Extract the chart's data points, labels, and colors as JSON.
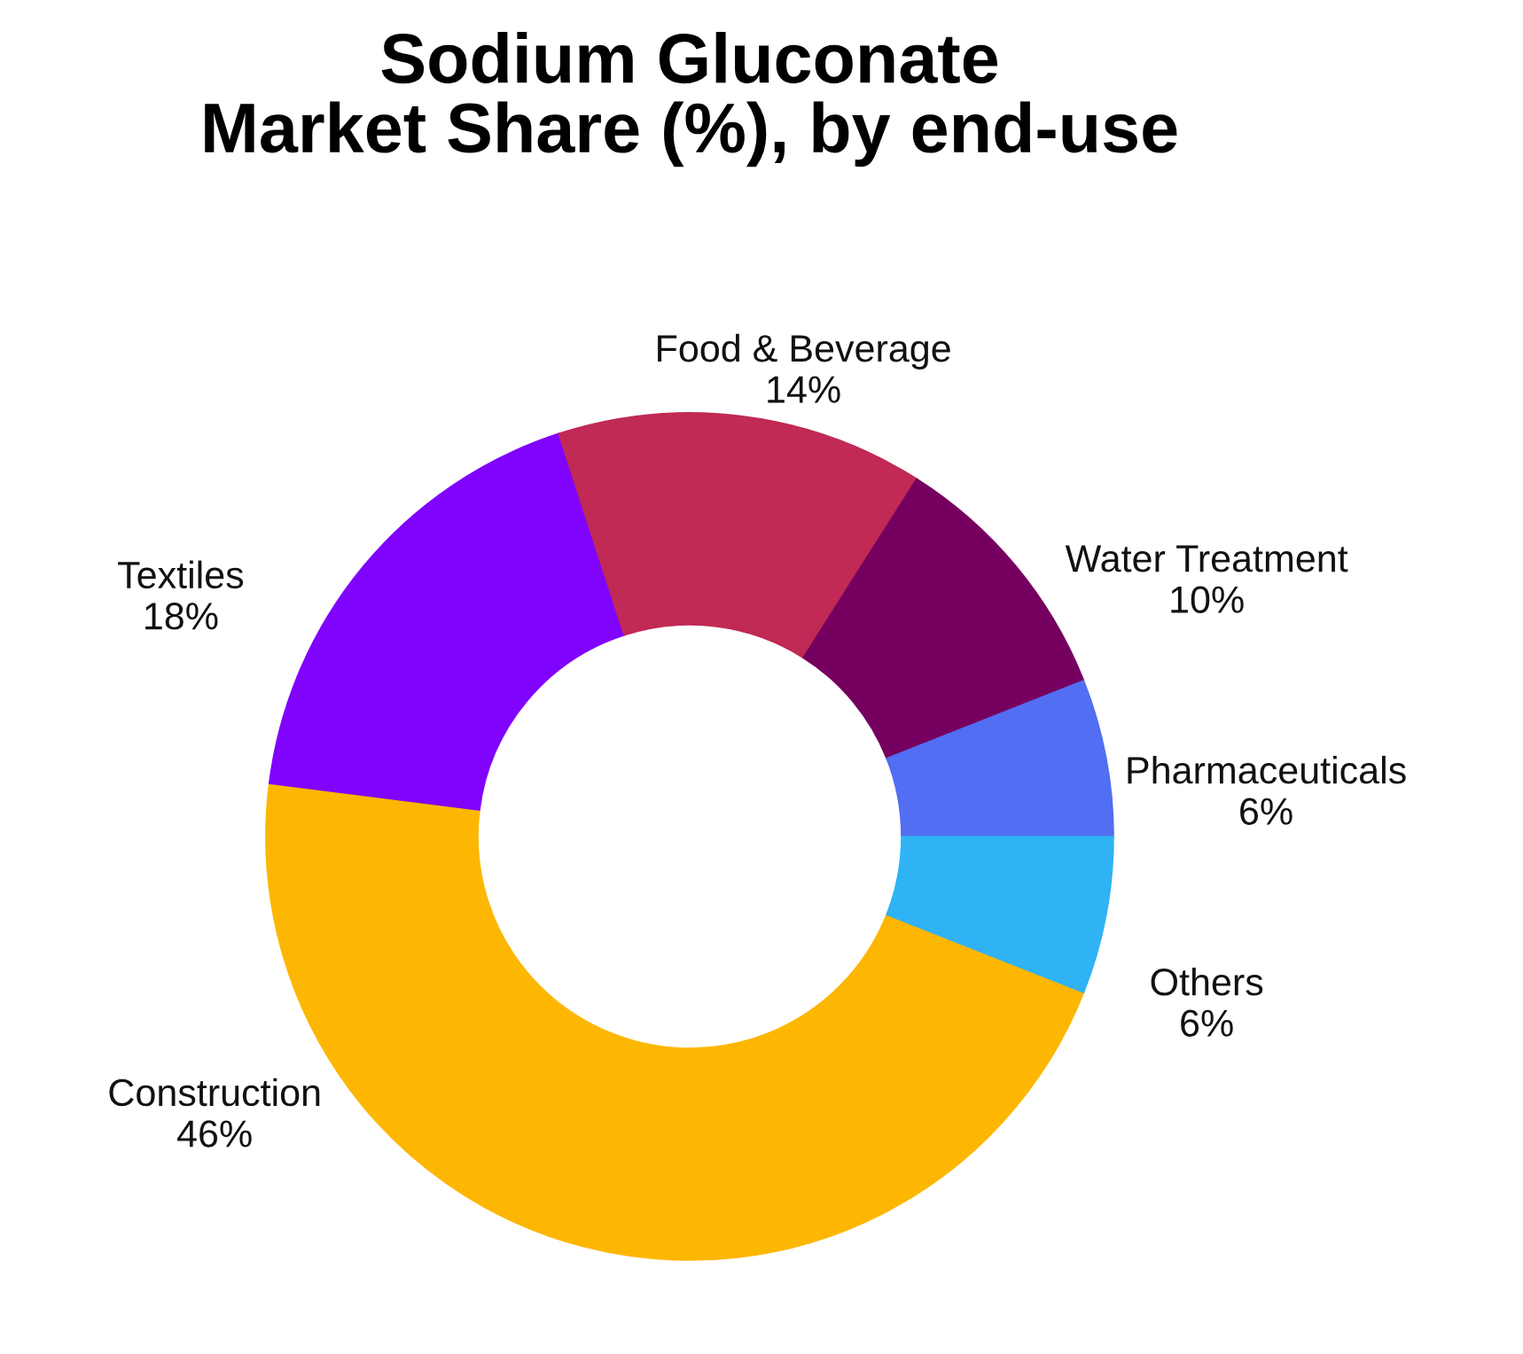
{
  "chart_data": {
    "type": "donut",
    "title": "Sodium Gluconate\nMarket Share (%), by end-use",
    "categories": [
      "Construction",
      "Textiles",
      "Food & Beverage",
      "Water Treatment",
      "Pharmaceuticals",
      "Others"
    ],
    "values": [
      46,
      18,
      14,
      10,
      6,
      6
    ],
    "colors": [
      "#fdb702",
      "#8003fd",
      "#c02a55",
      "#760060",
      "#526ef3",
      "#2fb3f5"
    ],
    "value_labels": [
      "46%",
      "18%",
      "14%",
      "10%",
      "6%",
      "6%"
    ]
  }
}
